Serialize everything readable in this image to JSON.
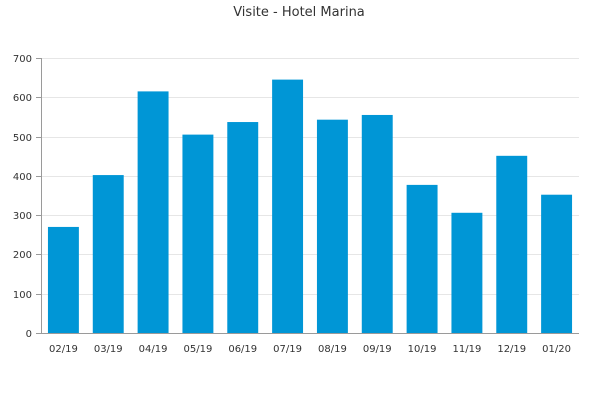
{
  "chart_data": {
    "type": "bar",
    "title": "Visite - Hotel Marina",
    "xlabel": "",
    "ylabel": "",
    "categories": [
      "02/19",
      "03/19",
      "04/19",
      "05/19",
      "06/19",
      "07/19",
      "08/19",
      "09/19",
      "10/19",
      "11/19",
      "12/19",
      "01/20"
    ],
    "values": [
      270,
      402,
      615,
      505,
      537,
      645,
      543,
      555,
      377,
      306,
      451,
      352
    ],
    "ylim": [
      0,
      700
    ],
    "yticks": [
      0,
      100,
      200,
      300,
      400,
      500,
      600,
      700
    ],
    "grid": true,
    "legend": "none",
    "bar_color": "#0096d6",
    "grid_color": "#e6e6e6",
    "axis_color": "#9a9a9a",
    "text_color": "#333333"
  }
}
